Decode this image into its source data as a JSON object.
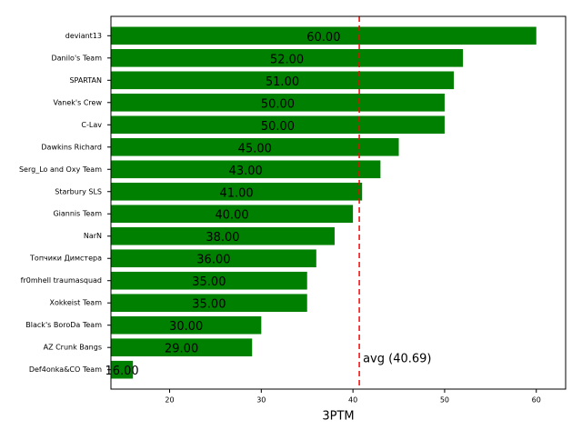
{
  "chart_data": {
    "type": "barh",
    "categories": [
      "deviant13",
      "Danilo's Team",
      "SPARTAN",
      "Vanek's Crew",
      "C-Lav",
      "Dawkins Richard",
      "Serg_Lo and Oxy Team",
      "Starbury SLS",
      "Giannis Team",
      "NarN",
      "Топчики Димстера",
      "fr0mhell traumasquad",
      "Xokkeist Team",
      "Black's BoroDa Team",
      "AZ Crunk Bangs",
      "Def4onka&CO Team"
    ],
    "values": [
      60,
      52,
      51,
      50,
      50,
      45,
      43,
      41,
      40,
      38,
      36,
      35,
      35,
      30,
      29,
      16
    ],
    "value_labels": [
      "60.00",
      "52.00",
      "51.00",
      "50.00",
      "50.00",
      "45.00",
      "43.00",
      "41.00",
      "40.00",
      "38.00",
      "36.00",
      "35.00",
      "35.00",
      "30.00",
      "29.00",
      "16.00"
    ],
    "color": "#008000",
    "xlabel": "3PTM",
    "xlim": [
      13.6,
      63.2
    ],
    "xticks": [
      20,
      30,
      40,
      50,
      60
    ],
    "avg": 40.69,
    "avg_label": "avg (40.69)",
    "avg_color": "#ff0000"
  }
}
